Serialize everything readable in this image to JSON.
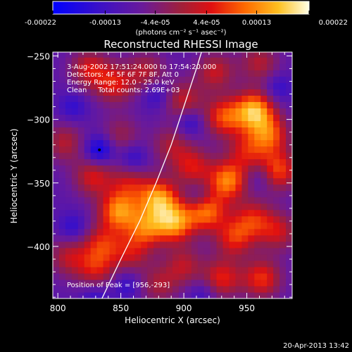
{
  "colorbar": {
    "tick_labels": [
      "-0.00022",
      "-0.00013",
      "-4.4e-05",
      "4.4e-05",
      "0.00013",
      "0.00022"
    ],
    "tick_values": [
      -0.00022,
      -0.00013,
      -4.4e-05,
      4.4e-05,
      0.00013,
      0.00022
    ],
    "range": [
      -0.00022,
      0.00022
    ],
    "units_label": "(photons cm⁻² s⁻¹ asec⁻²)"
  },
  "chart_data": {
    "type": "heatmap",
    "title": "Reconstructed RHESSI Image",
    "xlabel": "Heliocentric X (arcsec)",
    "ylabel": "Heliocentric Y (arcsec)",
    "xlim": [
      796,
      986
    ],
    "ylim": [
      -441,
      -247
    ],
    "x_ticks": [
      800,
      850,
      900,
      950
    ],
    "y_ticks": [
      -250,
      -300,
      -350,
      -400
    ],
    "x_tick_labels": [
      "800",
      "850",
      "900",
      "950"
    ],
    "y_tick_labels": [
      "-250",
      "-300",
      "-350",
      "-400"
    ],
    "annotations": [
      "3-Aug-2002 17:51:24.000 to 17:54:20.000",
      "Detectors: 4F 5F 6F 7F 8F, Att 0",
      "Energy Range: 12.0 - 25.0 keV",
      "Clean     Total counts: 2.69E+03"
    ],
    "peak_label": "Position of Peak = [956,-293]",
    "peak": [
      956,
      -293
    ],
    "limb_curve": [
      [
        835,
        -441
      ],
      [
        850,
        -410
      ],
      [
        865,
        -380
      ],
      [
        878,
        -350
      ],
      [
        890,
        -320
      ],
      [
        900,
        -290
      ],
      [
        910,
        -260
      ],
      [
        914,
        -247
      ]
    ],
    "blobs": [
      [
        825,
        -260,
        0.55
      ],
      [
        870,
        -262,
        0.45
      ],
      [
        845,
        -272,
        0.55
      ],
      [
        925,
        -262,
        0.5
      ],
      [
        960,
        -255,
        0.45
      ],
      [
        956,
        -293,
        1.0
      ],
      [
        932,
        -298,
        0.7
      ],
      [
        900,
        -285,
        0.5
      ],
      [
        968,
        -312,
        0.7
      ],
      [
        805,
        -318,
        0.45
      ],
      [
        850,
        -312,
        0.35
      ],
      [
        890,
        -320,
        0.4
      ],
      [
        950,
        -325,
        0.5
      ],
      [
        975,
        -340,
        0.7
      ],
      [
        935,
        -348,
        0.85
      ],
      [
        907,
        -337,
        0.55
      ],
      [
        828,
        -345,
        0.55
      ],
      [
        857,
        -350,
        0.45
      ],
      [
        880,
        -362,
        0.9
      ],
      [
        918,
        -372,
        0.8
      ],
      [
        848,
        -372,
        0.85
      ],
      [
        893,
        -381,
        0.9
      ],
      [
        870,
        -385,
        0.7
      ],
      [
        955,
        -378,
        0.55
      ],
      [
        940,
        -393,
        0.6
      ],
      [
        975,
        -388,
        0.5
      ],
      [
        858,
        -405,
        0.45
      ],
      [
        835,
        -398,
        0.55
      ],
      [
        808,
        -408,
        0.45
      ],
      [
        830,
        -418,
        0.5
      ],
      [
        900,
        -415,
        0.45
      ],
      [
        930,
        -425,
        0.6
      ],
      [
        962,
        -425,
        0.65
      ],
      [
        880,
        -430,
        0.4
      ]
    ],
    "dips": [
      [
        833,
        -324,
        1.0
      ],
      [
        878,
        -280,
        0.55
      ],
      [
        905,
        -302,
        0.65
      ],
      [
        812,
        -290,
        0.5
      ],
      [
        860,
        -330,
        0.6
      ],
      [
        912,
        -360,
        0.45
      ],
      [
        812,
        -385,
        0.55
      ],
      [
        830,
        -440,
        0.5
      ],
      [
        915,
        -436,
        0.45
      ],
      [
        960,
        -345,
        0.45
      ],
      [
        975,
        -275,
        0.5
      ],
      [
        855,
        -430,
        0.5
      ]
    ]
  },
  "timestamp": "20-Apr-2013 13:42"
}
